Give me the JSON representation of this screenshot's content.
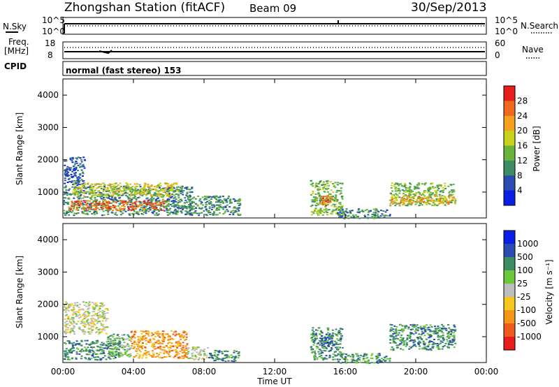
{
  "header": {
    "station": "Zhongshan Station (fitACF)",
    "beam": "Beam 09",
    "date": "30/Sep/2013"
  },
  "strip_labels": {
    "nsky": "N.Sky",
    "nsearch": "N.Search",
    "freq_a": "Freq.",
    "freq_b": "[MHz]",
    "nave": "Nave",
    "cpid": "CPID",
    "cpid_value": "normal (fast stereo) 153",
    "nsky_top": "10^5",
    "nsky_bottom": "10^0",
    "nsearch_top": "10^5",
    "nsearch_bottom": "10^0",
    "freq_top": "18",
    "freq_bottom": "8",
    "nave_top": "60",
    "nave_bottom": "0"
  },
  "colors": {
    "power": [
      "#0a1fe6",
      "#2a4bb0",
      "#3c8c64",
      "#68b43a",
      "#c8d21c",
      "#f5a01e",
      "#ef6a1e",
      "#e61e1e"
    ],
    "velocity": [
      "#e61e1e",
      "#ef5a1e",
      "#f59618",
      "#f5c81e",
      "#bdbdbd",
      "#6cc83a",
      "#3c8c64",
      "#2a4bb0",
      "#0a1fe6"
    ]
  },
  "chart_data": [
    {
      "type": "heatmap",
      "panel": "power",
      "ylabel": "Slant Range [km]",
      "ylim": [
        200,
        4500
      ],
      "xlim": [
        0,
        24
      ],
      "y_ticks": [
        "1000",
        "2000",
        "3000",
        "4000"
      ],
      "colorbar_label": "Power [dB]",
      "colorbar_ticks": [
        "4",
        "8",
        "12",
        "16",
        "20",
        "24",
        "28"
      ],
      "regions": [
        {
          "x": [
            0.0,
            7.3
          ],
          "y": [
            300,
            1200
          ],
          "level": 2
        },
        {
          "x": [
            0.0,
            1.2
          ],
          "y": [
            1200,
            2100
          ],
          "level": 1
        },
        {
          "x": [
            0.3,
            5.8
          ],
          "y": [
            450,
            750
          ],
          "level": 6
        },
        {
          "x": [
            0.5,
            6.5
          ],
          "y": [
            900,
            1300
          ],
          "level": 4
        },
        {
          "x": [
            7.0,
            10.0
          ],
          "y": [
            300,
            900
          ],
          "level": 2
        },
        {
          "x": [
            14.0,
            15.8
          ],
          "y": [
            300,
            1400
          ],
          "level": 3
        },
        {
          "x": [
            14.5,
            15.2
          ],
          "y": [
            600,
            900
          ],
          "level": 6
        },
        {
          "x": [
            15.5,
            18.5
          ],
          "y": [
            200,
            500
          ],
          "level": 2
        },
        {
          "x": [
            18.5,
            22.2
          ],
          "y": [
            600,
            1300
          ],
          "level": 3
        },
        {
          "x": [
            18.5,
            22.2
          ],
          "y": [
            650,
            900
          ],
          "level": 5
        }
      ]
    },
    {
      "type": "heatmap",
      "panel": "velocity",
      "xlabel": "Time UT",
      "ylabel": "Slant Range [km]",
      "ylim": [
        200,
        4500
      ],
      "xlim": [
        0,
        24
      ],
      "y_ticks": [
        "1000",
        "2000",
        "3000",
        "4000"
      ],
      "x_ticks": [
        "00:00",
        "04:00",
        "08:00",
        "12:00",
        "16:00",
        "20:00",
        "00:00"
      ],
      "colorbar_label": "Velocity [m s⁻¹]",
      "colorbar_ticks": [
        "1000",
        "500",
        "100",
        "25",
        "-25",
        "-100",
        "-500",
        "-1000"
      ],
      "regions": [
        {
          "x": [
            0.0,
            3.2
          ],
          "y": [
            300,
            900
          ],
          "level": 6
        },
        {
          "x": [
            0.0,
            2.5
          ],
          "y": [
            1100,
            2100
          ],
          "level": 4
        },
        {
          "x": [
            2.5,
            3.8
          ],
          "y": [
            400,
            1100
          ],
          "level": 5
        },
        {
          "x": [
            3.8,
            7.0
          ],
          "y": [
            350,
            1200
          ],
          "level": 2
        },
        {
          "x": [
            7.0,
            8.2
          ],
          "y": [
            300,
            700
          ],
          "level": 4
        },
        {
          "x": [
            8.2,
            10.0
          ],
          "y": [
            250,
            600
          ],
          "level": 6
        },
        {
          "x": [
            14.0,
            15.8
          ],
          "y": [
            300,
            1300
          ],
          "level": 6
        },
        {
          "x": [
            14.5,
            15.3
          ],
          "y": [
            700,
            1000
          ],
          "level": 7
        },
        {
          "x": [
            15.5,
            18.5
          ],
          "y": [
            200,
            500
          ],
          "level": 6
        },
        {
          "x": [
            18.5,
            22.2
          ],
          "y": [
            600,
            1400
          ],
          "level": 6
        }
      ]
    }
  ]
}
